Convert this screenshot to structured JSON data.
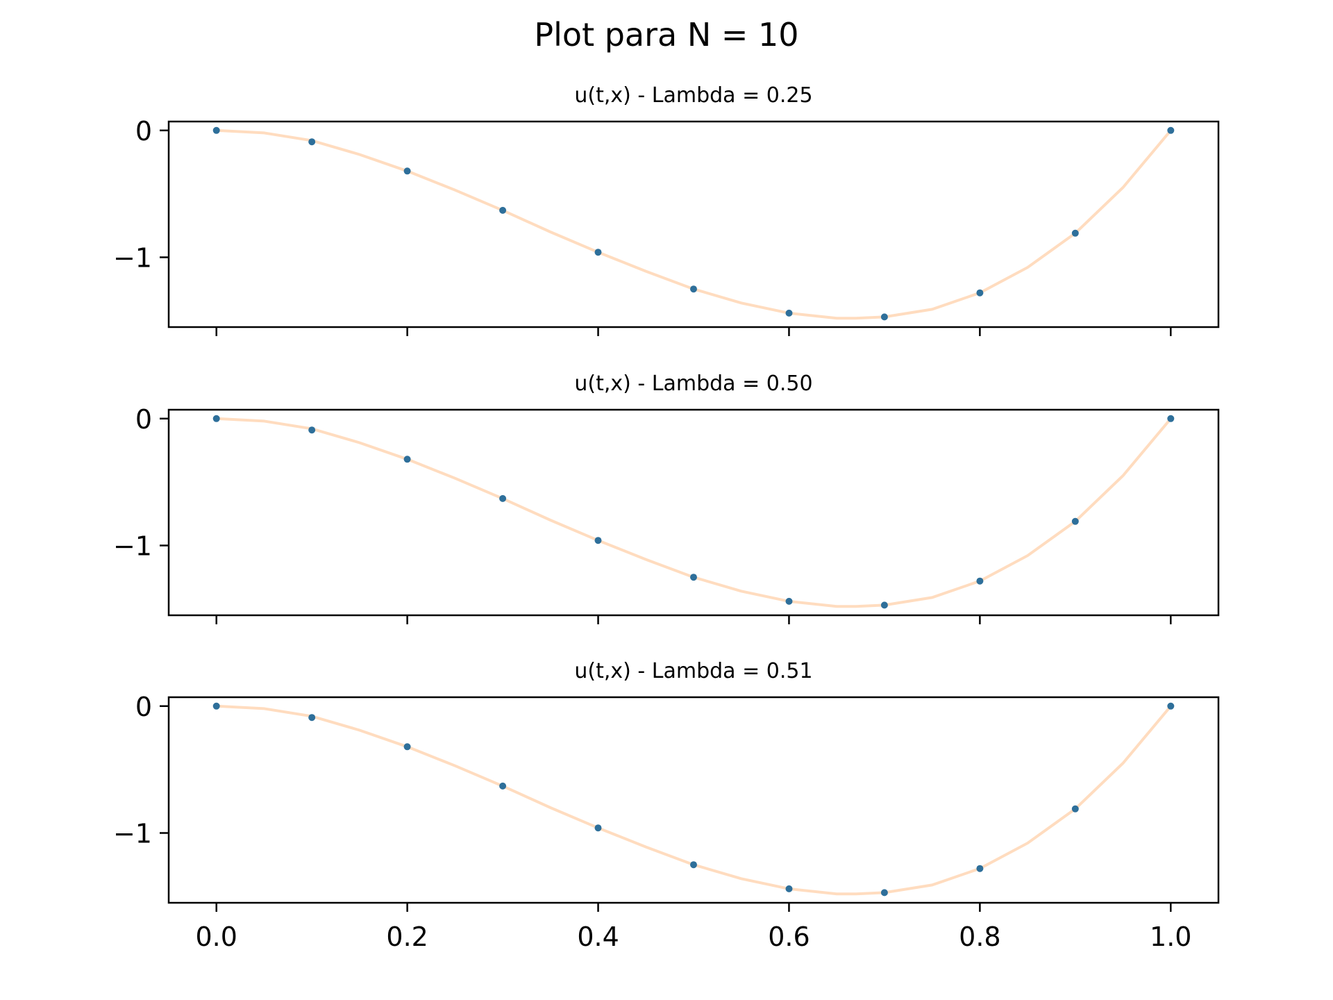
{
  "figure": {
    "suptitle": "Plot para N = 10"
  },
  "chart_data": [
    {
      "type": "line",
      "title": "u(t,x) - Lambda = 0.25",
      "xlim": [
        -0.05,
        1.05
      ],
      "ylim": [
        -1.55,
        0.07
      ],
      "xticks": [
        0.0,
        0.2,
        0.4,
        0.6,
        0.8,
        1.0
      ],
      "xticklabels": [],
      "yticks": [
        0,
        -1
      ],
      "yticklabels": [
        "0",
        "−1"
      ],
      "series": [
        {
          "kind": "scatter",
          "color": "#2e6f9a",
          "x": [
            0.0,
            0.1,
            0.2,
            0.3,
            0.4,
            0.5,
            0.6,
            0.7,
            0.8,
            0.9,
            1.0
          ],
          "y": [
            0.0,
            -0.09,
            -0.32,
            -0.63,
            -0.96,
            -1.25,
            -1.44,
            -1.47,
            -1.28,
            -0.81,
            0.0
          ]
        },
        {
          "kind": "line",
          "color": "#ffdcbf",
          "x": [
            0.0,
            0.05,
            0.1,
            0.15,
            0.2,
            0.25,
            0.3,
            0.35,
            0.4,
            0.45,
            0.5,
            0.55,
            0.6,
            0.65,
            0.67,
            0.7,
            0.75,
            0.8,
            0.85,
            0.9,
            0.95,
            1.0
          ],
          "y": [
            0.0,
            -0.02,
            -0.08,
            -0.19,
            -0.32,
            -0.47,
            -0.63,
            -0.8,
            -0.96,
            -1.11,
            -1.25,
            -1.36,
            -1.44,
            -1.48,
            -1.48,
            -1.47,
            -1.41,
            -1.28,
            -1.08,
            -0.81,
            -0.45,
            0.0
          ]
        }
      ]
    },
    {
      "type": "line",
      "title": "u(t,x) - Lambda = 0.50",
      "xlim": [
        -0.05,
        1.05
      ],
      "ylim": [
        -1.55,
        0.07
      ],
      "xticks": [
        0.0,
        0.2,
        0.4,
        0.6,
        0.8,
        1.0
      ],
      "xticklabels": [],
      "yticks": [
        0,
        -1
      ],
      "yticklabels": [
        "0",
        "−1"
      ],
      "series": [
        {
          "kind": "scatter",
          "color": "#2e6f9a",
          "x": [
            0.0,
            0.1,
            0.2,
            0.3,
            0.4,
            0.5,
            0.6,
            0.7,
            0.8,
            0.9,
            1.0
          ],
          "y": [
            0.0,
            -0.09,
            -0.32,
            -0.63,
            -0.96,
            -1.25,
            -1.44,
            -1.47,
            -1.28,
            -0.81,
            0.0
          ]
        },
        {
          "kind": "line",
          "color": "#ffdcbf",
          "x": [
            0.0,
            0.05,
            0.1,
            0.15,
            0.2,
            0.25,
            0.3,
            0.35,
            0.4,
            0.45,
            0.5,
            0.55,
            0.6,
            0.65,
            0.67,
            0.7,
            0.75,
            0.8,
            0.85,
            0.9,
            0.95,
            1.0
          ],
          "y": [
            0.0,
            -0.02,
            -0.08,
            -0.19,
            -0.32,
            -0.47,
            -0.63,
            -0.8,
            -0.96,
            -1.11,
            -1.25,
            -1.36,
            -1.44,
            -1.48,
            -1.48,
            -1.47,
            -1.41,
            -1.28,
            -1.08,
            -0.81,
            -0.45,
            0.0
          ]
        }
      ]
    },
    {
      "type": "line",
      "title": "u(t,x) - Lambda = 0.51",
      "xlim": [
        -0.05,
        1.05
      ],
      "ylim": [
        -1.55,
        0.07
      ],
      "xticks": [
        0.0,
        0.2,
        0.4,
        0.6,
        0.8,
        1.0
      ],
      "xticklabels": [
        "0.0",
        "0.2",
        "0.4",
        "0.6",
        "0.8",
        "1.0"
      ],
      "yticks": [
        0,
        -1
      ],
      "yticklabels": [
        "0",
        "−1"
      ],
      "series": [
        {
          "kind": "scatter",
          "color": "#2e6f9a",
          "x": [
            0.0,
            0.1,
            0.2,
            0.3,
            0.4,
            0.5,
            0.6,
            0.7,
            0.8,
            0.9,
            1.0
          ],
          "y": [
            0.0,
            -0.09,
            -0.32,
            -0.63,
            -0.96,
            -1.25,
            -1.44,
            -1.47,
            -1.28,
            -0.81,
            0.0
          ]
        },
        {
          "kind": "line",
          "color": "#ffdcbf",
          "x": [
            0.0,
            0.05,
            0.1,
            0.15,
            0.2,
            0.25,
            0.3,
            0.35,
            0.4,
            0.45,
            0.5,
            0.55,
            0.6,
            0.65,
            0.67,
            0.7,
            0.75,
            0.8,
            0.85,
            0.9,
            0.95,
            1.0
          ],
          "y": [
            0.0,
            -0.02,
            -0.08,
            -0.19,
            -0.32,
            -0.47,
            -0.63,
            -0.8,
            -0.96,
            -1.11,
            -1.25,
            -1.36,
            -1.44,
            -1.48,
            -1.48,
            -1.47,
            -1.41,
            -1.28,
            -1.08,
            -0.81,
            -0.45,
            0.0
          ]
        }
      ]
    }
  ]
}
